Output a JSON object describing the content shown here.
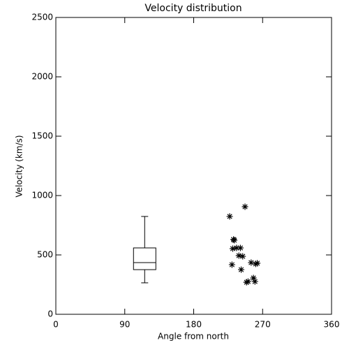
{
  "chart_data": {
    "type": "scatter",
    "title": "Velocity distribution",
    "xlabel": "Angle from north",
    "ylabel": "Velocity (km/s)",
    "xlim": [
      0,
      360
    ],
    "xticks": [
      0,
      90,
      180,
      270,
      360
    ],
    "ylim": [
      0,
      2500
    ],
    "yticks": [
      0,
      500,
      1000,
      1500,
      2000,
      2500
    ],
    "color": "#000000",
    "box": {
      "x": 116,
      "min": 265,
      "q1": 376,
      "median": 435,
      "q3": 559,
      "max": 824
    },
    "x": [
      227,
      247,
      233,
      232,
      231,
      241,
      236,
      230,
      239,
      244,
      242,
      255,
      261,
      263,
      251,
      249,
      258,
      260
    ],
    "y": [
      824,
      906,
      624,
      630,
      553,
      559,
      559,
      418,
      494,
      488,
      376,
      435,
      424,
      430,
      276,
      270,
      306,
      276
    ]
  }
}
